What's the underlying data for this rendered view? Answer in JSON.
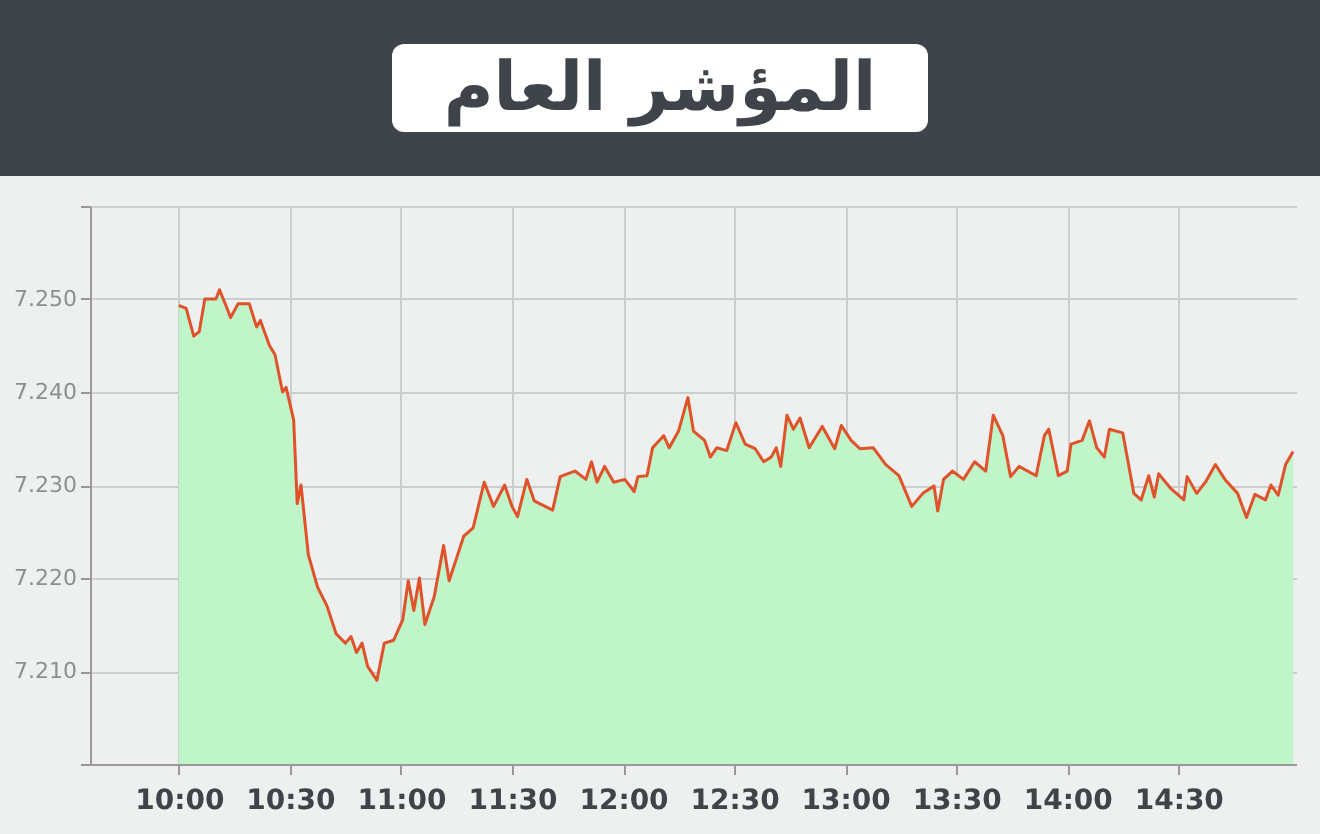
{
  "chart_data": {
    "type": "area",
    "title": "المؤشر العام",
    "x": [
      10.0,
      10.033,
      10.067,
      10.092,
      10.117,
      10.167,
      10.183,
      10.217,
      10.233,
      10.267,
      10.317,
      10.35,
      10.367,
      10.408,
      10.433,
      10.467,
      10.483,
      10.517,
      10.533,
      10.55,
      10.583,
      10.625,
      10.667,
      10.708,
      10.75,
      10.775,
      10.8,
      10.825,
      10.85,
      10.892,
      10.925,
      10.967,
      11.008,
      11.033,
      11.058,
      11.083,
      11.108,
      11.15,
      11.192,
      11.217,
      11.283,
      11.325,
      11.375,
      11.417,
      11.467,
      11.5,
      11.525,
      11.567,
      11.6,
      11.683,
      11.717,
      11.783,
      11.833,
      11.858,
      11.883,
      11.917,
      11.958,
      12.008,
      12.05,
      12.067,
      12.108,
      12.133,
      12.183,
      12.208,
      12.25,
      12.292,
      12.317,
      12.367,
      12.393,
      12.422,
      12.467,
      12.508,
      12.55,
      12.595,
      12.633,
      12.667,
      12.69,
      12.71,
      12.738,
      12.767,
      12.797,
      12.838,
      12.897,
      12.953,
      12.983,
      13.027,
      13.067,
      13.127,
      13.183,
      13.242,
      13.3,
      13.35,
      13.4,
      13.417,
      13.443,
      13.483,
      13.533,
      13.583,
      13.633,
      13.667,
      13.71,
      13.745,
      13.783,
      13.86,
      13.897,
      13.917,
      13.96,
      14.0,
      14.017,
      14.067,
      14.1,
      14.133,
      14.167,
      14.19,
      14.25,
      14.3,
      14.333,
      14.367,
      14.392,
      14.412,
      14.467,
      14.525,
      14.54,
      14.583,
      14.625,
      14.667,
      14.71,
      14.767,
      14.807,
      14.845,
      14.893,
      14.917,
      14.95,
      14.983,
      15.017
    ],
    "series": [
      {
        "color": "#bff5c8",
        "values": [
          7249.3,
          7249,
          7246,
          7246.5,
          7250,
          7250,
          7251,
          7249,
          7248,
          7249.5,
          7249.5,
          7247,
          7247.7,
          7245,
          7244,
          7240,
          7240.5,
          7237,
          7228,
          7230,
          7222.5,
          7219,
          7217,
          7214,
          7213,
          7213.7,
          7212,
          7213,
          7210.5,
          7209,
          7213,
          7213.3,
          7215.5,
          7219.7,
          7216.5,
          7220,
          7215,
          7218,
          7223.5,
          7219.7,
          7224.5,
          7225.4,
          7230.3,
          7227.7,
          7230,
          7227.7,
          7226.6,
          7230.6,
          7228.3,
          7227.3,
          7230.9,
          7231.5,
          7230.6,
          7232.5,
          7230.3,
          7232,
          7230.3,
          7230.6,
          7229.3,
          7230.9,
          7231,
          7234,
          7235.3,
          7234,
          7235.8,
          7239.4,
          7235.8,
          7234.8,
          7233,
          7234,
          7233.7,
          7236.7,
          7234.4,
          7233.9,
          7232.5,
          7233,
          7234,
          7232,
          7237.5,
          7236,
          7237.2,
          7234,
          7236.3,
          7233.9,
          7236.4,
          7234.8,
          7233.9,
          7234,
          7232.2,
          7231,
          7227.7,
          7229.1,
          7229.9,
          7227.2,
          7230.6,
          7231.5,
          7230.6,
          7232.5,
          7231.5,
          7237.5,
          7235.3,
          7230.9,
          7232,
          7231,
          7235.3,
          7236,
          7231,
          7231.5,
          7234.4,
          7234.8,
          7236.9,
          7234,
          7233,
          7236,
          7235.6,
          7229.1,
          7228.4,
          7231,
          7228.7,
          7231.2,
          7229.6,
          7228.4,
          7230.9,
          7229.1,
          7230.4,
          7232.2,
          7230.6,
          7229.1,
          7226.5,
          7229,
          7228.4,
          7230,
          7228.9,
          7232.2,
          7233.6
        ]
      },
      {
        "type": "line",
        "color": "#e0522a",
        "values": [
          7249.3,
          7249,
          7246,
          7246.5,
          7250,
          7250,
          7251,
          7249,
          7248,
          7249.5,
          7249.5,
          7247,
          7247.7,
          7245,
          7244,
          7240,
          7240.5,
          7237,
          7228,
          7230,
          7222.5,
          7219,
          7217,
          7214,
          7213,
          7213.7,
          7212,
          7213,
          7210.5,
          7209,
          7213,
          7213.3,
          7215.5,
          7219.7,
          7216.5,
          7220,
          7215,
          7218,
          7223.5,
          7219.7,
          7224.5,
          7225.4,
          7230.3,
          7227.7,
          7230,
          7227.7,
          7226.6,
          7230.6,
          7228.3,
          7227.3,
          7230.9,
          7231.5,
          7230.6,
          7232.5,
          7230.3,
          7232,
          7230.3,
          7230.6,
          7229.3,
          7230.9,
          7231,
          7234,
          7235.3,
          7234,
          7235.8,
          7239.4,
          7235.8,
          7234.8,
          7233,
          7234,
          7233.7,
          7236.7,
          7234.4,
          7233.9,
          7232.5,
          7233,
          7234,
          7232,
          7237.5,
          7236,
          7237.2,
          7234,
          7236.3,
          7233.9,
          7236.4,
          7234.8,
          7233.9,
          7234,
          7232.2,
          7231,
          7227.7,
          7229.1,
          7229.9,
          7227.2,
          7230.6,
          7231.5,
          7230.6,
          7232.5,
          7231.5,
          7237.5,
          7235.3,
          7230.9,
          7232,
          7231,
          7235.3,
          7236,
          7231,
          7231.5,
          7234.4,
          7234.8,
          7236.9,
          7234,
          7233,
          7236,
          7235.6,
          7229.1,
          7228.4,
          7231,
          7228.7,
          7231.2,
          7229.6,
          7228.4,
          7230.9,
          7229.1,
          7230.4,
          7232.2,
          7230.6,
          7229.1,
          7226.5,
          7229,
          7228.4,
          7230,
          7228.9,
          7232.2,
          7233.6
        ]
      }
    ],
    "xlim": [
      9.6,
      15.03
    ],
    "xticks": [
      {
        "value": 10,
        "label": "10:00"
      },
      {
        "value": 10.5,
        "label": "10:30"
      },
      {
        "value": 11,
        "label": "11:00"
      },
      {
        "value": 11.5,
        "label": "11:30"
      },
      {
        "value": 12,
        "label": "12:00"
      },
      {
        "value": 12.5,
        "label": "12:30"
      },
      {
        "value": 13,
        "label": "13:00"
      },
      {
        "value": 13.5,
        "label": "13:30"
      },
      {
        "value": 14,
        "label": "14:00"
      },
      {
        "value": 14.5,
        "label": "14:30"
      }
    ],
    "ylim": [
      7200,
      7260
    ],
    "yticks": [
      {
        "value": 7200,
        "label": null
      },
      {
        "value": 7210,
        "label": "7.210"
      },
      {
        "value": 7220,
        "label": "7.220"
      },
      {
        "value": 7230,
        "label": "7.230"
      },
      {
        "value": 7240,
        "label": "7.240"
      },
      {
        "value": 7250,
        "label": "7.250"
      },
      {
        "value": 7260,
        "label": null
      }
    ],
    "grid": true
  }
}
